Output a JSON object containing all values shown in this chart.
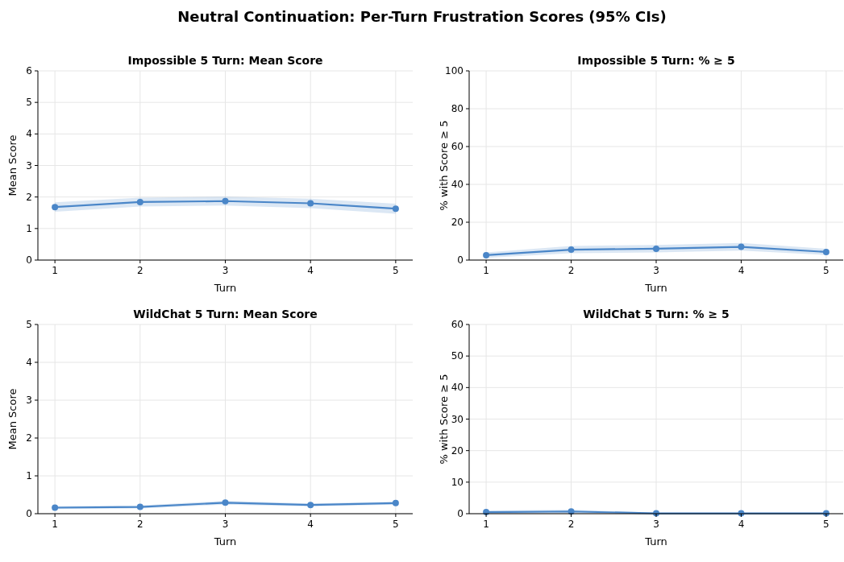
{
  "chart_data": [
    {
      "type": "line",
      "annotations": [
        "Neutral Continuation: Per-Turn Frustration Scores (95% CIs)"
      ],
      "title": "Impossible 5 Turn: Mean Score",
      "xlabel": "Turn",
      "ylabel": "Mean Score",
      "x": [
        1,
        2,
        3,
        4,
        5
      ],
      "xlim": [
        0.8,
        5.2
      ],
      "xticks": [
        1,
        2,
        3,
        4,
        5
      ],
      "ylim": [
        0,
        6
      ],
      "yticks": [
        0,
        1,
        2,
        3,
        4,
        5,
        6
      ],
      "grid": true,
      "marker": "circle",
      "series": [
        {
          "color": "#4a86c8",
          "values": [
            1.68,
            1.84,
            1.87,
            1.8,
            1.63
          ],
          "lower": [
            1.53,
            1.7,
            1.73,
            1.65,
            1.47
          ],
          "upper": [
            1.83,
            1.98,
            2.01,
            1.95,
            1.79
          ]
        }
      ]
    },
    {
      "type": "line",
      "title": "Impossible 5 Turn: % ≥ 5",
      "xlabel": "Turn",
      "ylabel": "% with Score ≥ 5",
      "x": [
        1,
        2,
        3,
        4,
        5
      ],
      "xlim": [
        0.8,
        5.2
      ],
      "xticks": [
        1,
        2,
        3,
        4,
        5
      ],
      "ylim": [
        0,
        100
      ],
      "yticks": [
        0,
        20,
        40,
        60,
        80,
        100
      ],
      "grid": true,
      "marker": "circle",
      "series": [
        {
          "color": "#4a86c8",
          "values": [
            2.6,
            5.5,
            6,
            7,
            4.3
          ],
          "lower": [
            1.2,
            3.6,
            4,
            5,
            2.7
          ],
          "upper": [
            4,
            7.5,
            8,
            9,
            6
          ]
        }
      ]
    },
    {
      "type": "line",
      "title": "WildChat 5 Turn: Mean Score",
      "xlabel": "Turn",
      "ylabel": "Mean Score",
      "x": [
        1,
        2,
        3,
        4,
        5
      ],
      "xlim": [
        0.8,
        5.2
      ],
      "xticks": [
        1,
        2,
        3,
        4,
        5
      ],
      "ylim": [
        0,
        5
      ],
      "yticks": [
        0,
        1,
        2,
        3,
        4,
        5
      ],
      "grid": true,
      "marker": "circle",
      "series": [
        {
          "color": "#4a86c8",
          "values": [
            0.16,
            0.18,
            0.29,
            0.23,
            0.28
          ],
          "lower": [
            0.12,
            0.14,
            0.24,
            0.19,
            0.24
          ],
          "upper": [
            0.2,
            0.22,
            0.34,
            0.27,
            0.32
          ]
        }
      ]
    },
    {
      "type": "line",
      "title": "WildChat 5 Turn: % ≥ 5",
      "xlabel": "Turn",
      "ylabel": "% with Score ≥ 5",
      "x": [
        1,
        2,
        3,
        4,
        5
      ],
      "xlim": [
        0.8,
        5.2
      ],
      "xticks": [
        1,
        2,
        3,
        4,
        5
      ],
      "ylim": [
        0,
        60
      ],
      "yticks": [
        0,
        10,
        20,
        30,
        40,
        50,
        60
      ],
      "grid": true,
      "marker": "circle",
      "series": [
        {
          "color": "#4a86c8",
          "values": [
            0.5,
            0.7,
            0.1,
            0.1,
            0.1
          ],
          "lower": [
            0,
            0.2,
            0,
            0,
            0
          ],
          "upper": [
            1,
            1.3,
            0.3,
            0.3,
            0.3
          ]
        }
      ]
    }
  ]
}
